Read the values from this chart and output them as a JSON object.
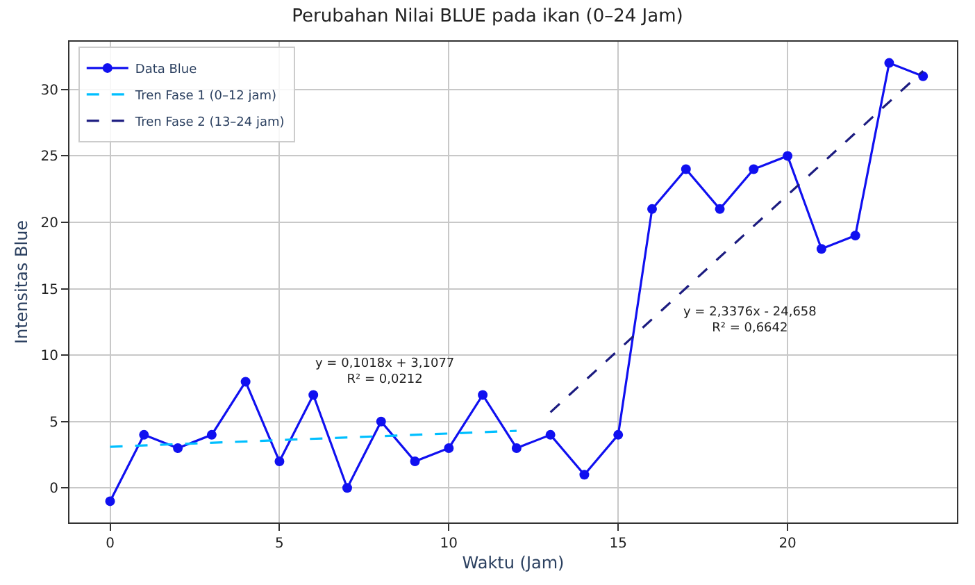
{
  "chart_data": {
    "type": "line",
    "title": "Perubahan Nilai BLUE pada ikan (0–24 Jam)",
    "xlabel": "Waktu (Jam)",
    "ylabel": "Intensitas Blue",
    "x": [
      0,
      1,
      2,
      3,
      4,
      5,
      6,
      7,
      8,
      9,
      10,
      11,
      12,
      13,
      14,
      15,
      16,
      17,
      18,
      19,
      20,
      21,
      22,
      23,
      24
    ],
    "series": [
      {
        "name": "Data Blue",
        "color": "#1010f0",
        "values": [
          -1,
          4,
          3,
          4,
          8,
          2,
          7,
          0,
          5,
          2,
          3,
          7,
          3,
          4,
          1,
          4,
          21,
          24,
          21,
          24,
          25,
          18,
          19,
          32,
          31
        ],
        "marker": "circle",
        "line_style": "solid"
      },
      {
        "name": "Tren Fase 1 (0–12 jam)",
        "color": "#00bfff",
        "type": "line",
        "x": [
          0,
          12
        ],
        "values": [
          3.1,
          4.3
        ],
        "marker": "none",
        "line_style": "dashed"
      },
      {
        "name": "Tren Fase 2 (13–24 jam)",
        "color": "#1c1c80",
        "type": "line",
        "x": [
          13,
          24
        ],
        "values": [
          5.7,
          31.4
        ],
        "marker": "none",
        "line_style": "dashed"
      }
    ],
    "annotations": [
      "y = 0,1018x + 3,1077\nR² = 0,0212",
      "y = 2,3376x - 24,658\nR² = 0,6642"
    ],
    "xlim": [
      -1.2,
      25
    ],
    "xticks": [
      0,
      5,
      10,
      15,
      20
    ],
    "ylim": [
      -2.6,
      33.6
    ],
    "yticks": [
      0,
      5,
      10,
      15,
      20,
      25,
      30
    ],
    "grid": true,
    "legend": "top left"
  }
}
